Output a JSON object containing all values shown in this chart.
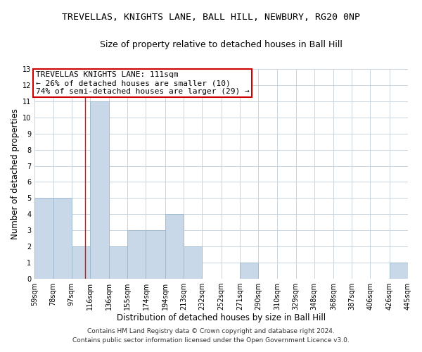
{
  "title": "TREVELLAS, KNIGHTS LANE, BALL HILL, NEWBURY, RG20 0NP",
  "subtitle": "Size of property relative to detached houses in Ball Hill",
  "xlabel": "Distribution of detached houses by size in Ball Hill",
  "ylabel": "Number of detached properties",
  "bin_edges": [
    59,
    78,
    97,
    116,
    136,
    155,
    174,
    194,
    213,
    232,
    252,
    271,
    290,
    310,
    329,
    348,
    368,
    387,
    406,
    426,
    445
  ],
  "bar_heights": [
    5,
    5,
    2,
    11,
    2,
    3,
    3,
    4,
    2,
    0,
    0,
    1,
    0,
    0,
    0,
    0,
    0,
    0,
    0,
    1
  ],
  "bar_color": "#c8d8e8",
  "bar_edgecolor": "#9ab8cc",
  "red_line_x": 111,
  "ylim": [
    0,
    13
  ],
  "yticks": [
    0,
    1,
    2,
    3,
    4,
    5,
    6,
    7,
    8,
    9,
    10,
    11,
    12,
    13
  ],
  "tick_labels": [
    "59sqm",
    "78sqm",
    "97sqm",
    "116sqm",
    "136sqm",
    "155sqm",
    "174sqm",
    "194sqm",
    "213sqm",
    "232sqm",
    "252sqm",
    "271sqm",
    "290sqm",
    "310sqm",
    "329sqm",
    "348sqm",
    "368sqm",
    "387sqm",
    "406sqm",
    "426sqm",
    "445sqm"
  ],
  "annotation_box_text": "TREVELLAS KNIGHTS LANE: 111sqm\n← 26% of detached houses are smaller (10)\n74% of semi-detached houses are larger (29) →",
  "annotation_box_color": "#ffffff",
  "annotation_box_edgecolor": "#cc0000",
  "footer_line1": "Contains HM Land Registry data © Crown copyright and database right 2024.",
  "footer_line2": "Contains public sector information licensed under the Open Government Licence v3.0.",
  "background_color": "#ffffff",
  "grid_color": "#c8d4de",
  "title_fontsize": 9.5,
  "subtitle_fontsize": 9,
  "axis_label_fontsize": 8.5,
  "tick_fontsize": 7,
  "annotation_fontsize": 8,
  "footer_fontsize": 6.5
}
